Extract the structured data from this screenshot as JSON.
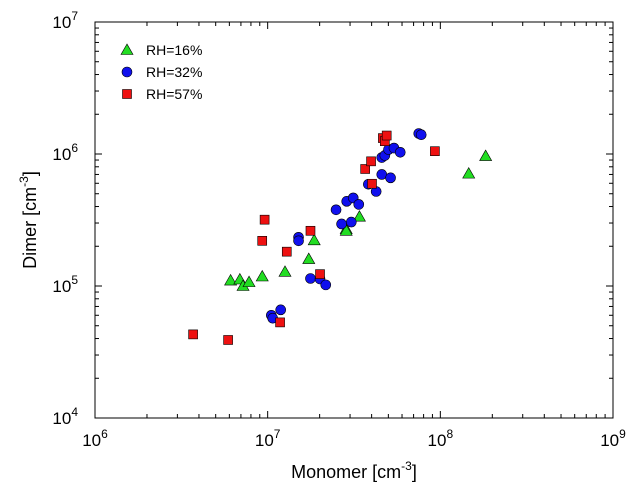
{
  "chart_data": {
    "type": "scatter",
    "xscale": "log",
    "yscale": "log",
    "xlim": [
      1000000,
      1000000000
    ],
    "ylim": [
      10000,
      10000000
    ],
    "xlabel": "Monomer [cm",
    "xlabel_sup": "-3",
    "xlabel_end": "]",
    "ylabel": "Dimer [cm",
    "ylabel_sup": "-3",
    "ylabel_end": "]",
    "x_ticks": [
      {
        "base": "10",
        "exp": "6",
        "value": 1000000
      },
      {
        "base": "10",
        "exp": "7",
        "value": 10000000
      },
      {
        "base": "10",
        "exp": "8",
        "value": 100000000
      },
      {
        "base": "10",
        "exp": "9",
        "value": 1000000000
      }
    ],
    "y_ticks": [
      {
        "base": "10",
        "exp": "4",
        "value": 10000
      },
      {
        "base": "10",
        "exp": "5",
        "value": 100000
      },
      {
        "base": "10",
        "exp": "6",
        "value": 1000000
      },
      {
        "base": "10",
        "exp": "7",
        "value": 10000000
      }
    ],
    "legend_position": "top-left",
    "grid": false,
    "series": [
      {
        "name": "RH=16%",
        "marker": "triangle",
        "color": "#22dd22",
        "points": [
          [
            6100000,
            110000
          ],
          [
            6900000,
            112000
          ],
          [
            7200000,
            100000
          ],
          [
            7800000,
            107000
          ],
          [
            9300000,
            118000
          ],
          [
            12600000,
            128000
          ],
          [
            17300000,
            160000
          ],
          [
            18600000,
            222000
          ],
          [
            28500000,
            270000
          ],
          [
            28500000,
            262000
          ],
          [
            34000000,
            335000
          ],
          [
            146000000,
            710000
          ],
          [
            183000000,
            965000
          ]
        ]
      },
      {
        "name": "RH=32%",
        "marker": "circle",
        "color": "#1010ee",
        "points": [
          [
            10500000,
            60000
          ],
          [
            10700000,
            57000
          ],
          [
            11900000,
            66000
          ],
          [
            15100000,
            234000
          ],
          [
            15100000,
            220000
          ],
          [
            17700000,
            114000
          ],
          [
            20100000,
            113000
          ],
          [
            21700000,
            102000
          ],
          [
            24900000,
            378000
          ],
          [
            26800000,
            295000
          ],
          [
            28700000,
            438000
          ],
          [
            30500000,
            305000
          ],
          [
            31300000,
            465000
          ],
          [
            33700000,
            415000
          ],
          [
            38300000,
            590000
          ],
          [
            42500000,
            520000
          ],
          [
            45800000,
            700000
          ],
          [
            45800000,
            940000
          ],
          [
            47700000,
            975000
          ],
          [
            50100000,
            1080000
          ],
          [
            51500000,
            660000
          ],
          [
            53900000,
            1110000
          ],
          [
            58600000,
            1030000
          ],
          [
            75000000,
            1430000
          ],
          [
            77500000,
            1400000
          ]
        ]
      },
      {
        "name": "RH=57%",
        "marker": "square",
        "color": "#ee1111",
        "points": [
          [
            3700000,
            43000
          ],
          [
            5900000,
            39000
          ],
          [
            9300000,
            220000
          ],
          [
            9600000,
            318000
          ],
          [
            11800000,
            53000
          ],
          [
            12900000,
            182000
          ],
          [
            17700000,
            262000
          ],
          [
            20100000,
            123000
          ],
          [
            36700000,
            770000
          ],
          [
            39700000,
            880000
          ],
          [
            40200000,
            595000
          ],
          [
            46500000,
            1320000
          ],
          [
            47700000,
            1250000
          ],
          [
            48900000,
            1380000
          ],
          [
            93000000,
            1050000
          ]
        ]
      }
    ]
  }
}
